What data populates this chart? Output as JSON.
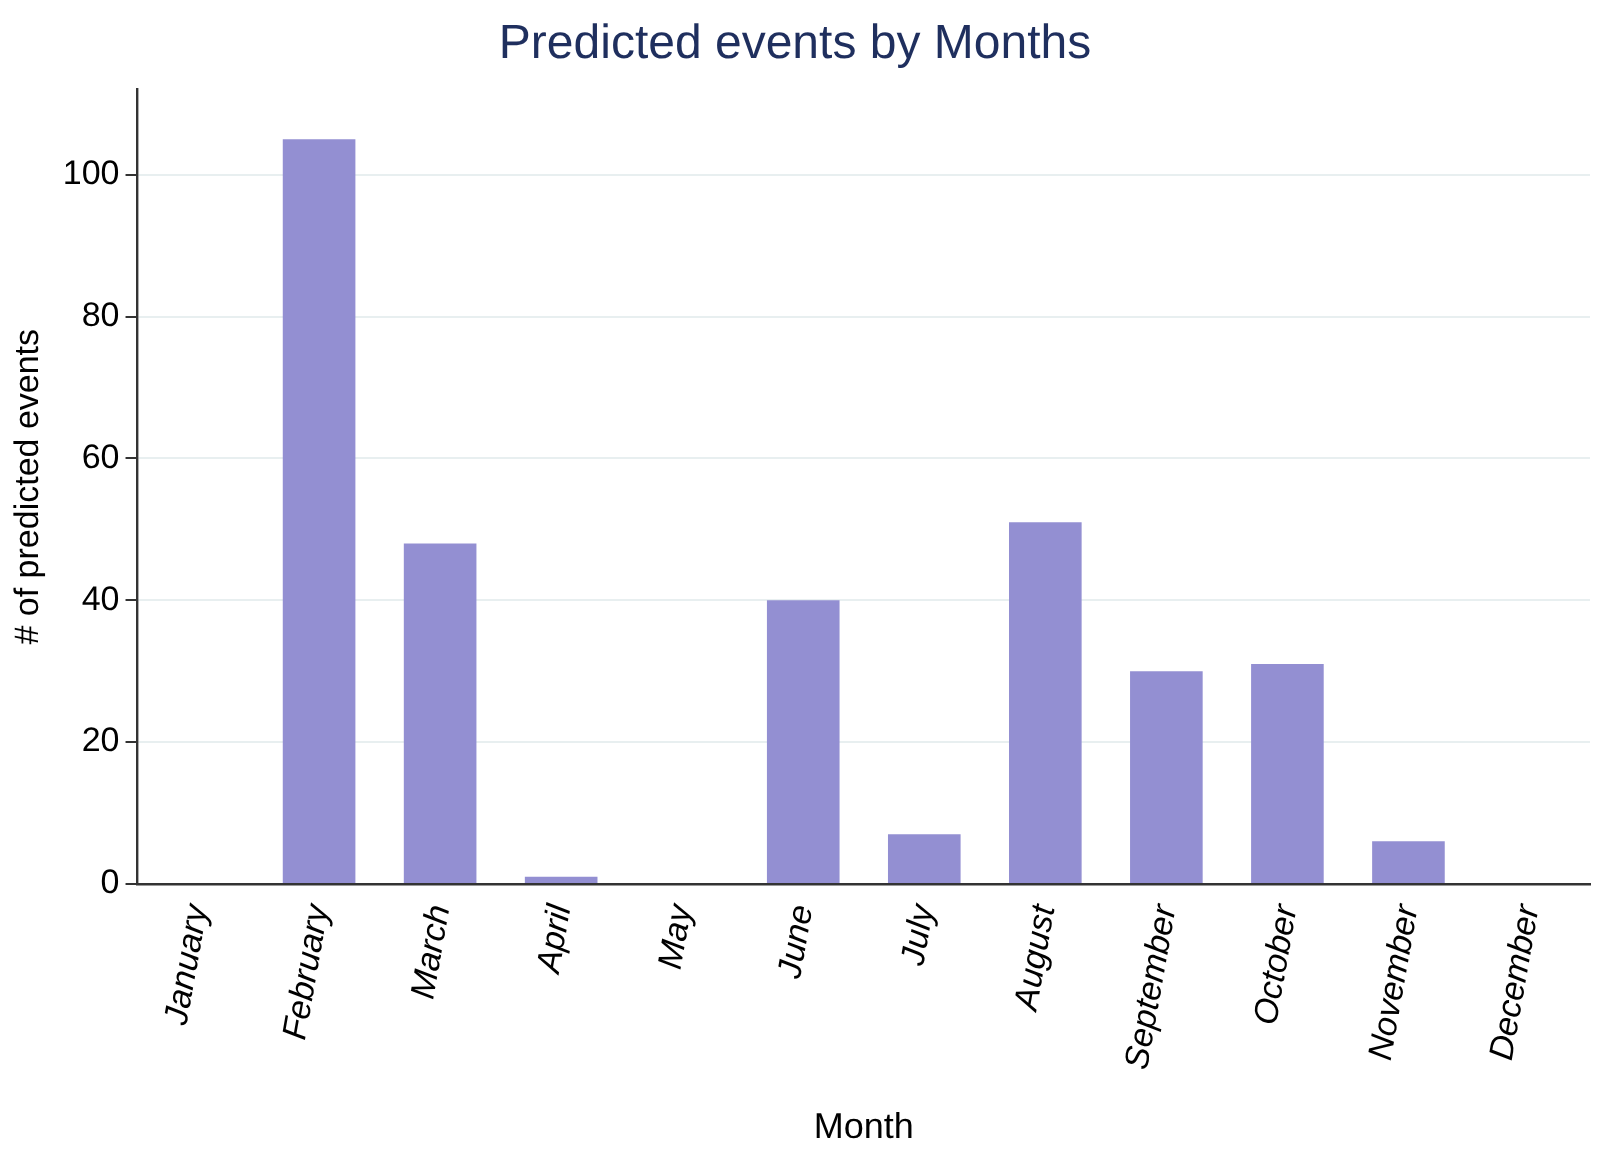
{
  "chart_data": {
    "type": "bar",
    "title": "Predicted events by Months",
    "xlabel": "Month",
    "ylabel": "# of predicted events",
    "categories": [
      "January",
      "February",
      "March",
      "April",
      "May",
      "June",
      "July",
      "August",
      "September",
      "October",
      "November",
      "December"
    ],
    "values": [
      0,
      105,
      48,
      1,
      0,
      40,
      7,
      51,
      30,
      31,
      6,
      0
    ],
    "color": "#938fd2",
    "ylim": [
      0,
      112
    ],
    "yticks": [
      0,
      20,
      40,
      60,
      80,
      100
    ],
    "grid": "y",
    "legend": false
  }
}
